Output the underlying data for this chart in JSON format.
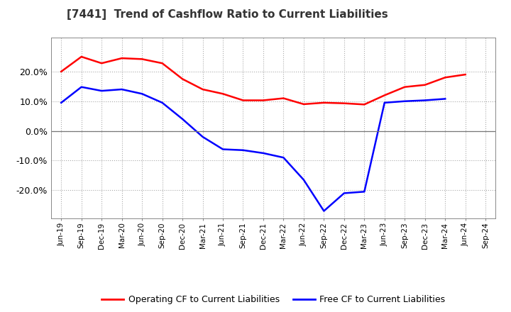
{
  "title": "[7441]  Trend of Cashflow Ratio to Current Liabilities",
  "x_labels": [
    "Jun-19",
    "Sep-19",
    "Dec-19",
    "Mar-20",
    "Jun-20",
    "Sep-20",
    "Dec-20",
    "Mar-21",
    "Jun-21",
    "Sep-21",
    "Dec-21",
    "Mar-22",
    "Jun-22",
    "Sep-22",
    "Dec-22",
    "Mar-23",
    "Jun-23",
    "Sep-23",
    "Dec-23",
    "Mar-24",
    "Jun-24",
    "Sep-24"
  ],
  "operating_cf": [
    0.2,
    0.25,
    0.228,
    0.245,
    0.242,
    0.228,
    0.175,
    0.14,
    0.125,
    0.103,
    0.103,
    0.11,
    0.09,
    0.095,
    0.093,
    0.089,
    0.12,
    0.148,
    0.155,
    0.18,
    0.19,
    null
  ],
  "free_cf": [
    0.095,
    0.148,
    0.135,
    0.14,
    0.125,
    0.095,
    0.04,
    -0.02,
    -0.062,
    -0.065,
    -0.075,
    -0.09,
    -0.165,
    -0.27,
    -0.21,
    -0.205,
    0.095,
    0.1,
    0.103,
    0.108,
    null,
    null
  ],
  "operating_color": "#ff0000",
  "free_color": "#0000ff",
  "background_color": "#ffffff",
  "ylim": [
    -0.295,
    0.315
  ],
  "yticks": [
    -0.2,
    -0.1,
    0.0,
    0.1,
    0.2
  ],
  "legend_labels": [
    "Operating CF to Current Liabilities",
    "Free CF to Current Liabilities"
  ]
}
